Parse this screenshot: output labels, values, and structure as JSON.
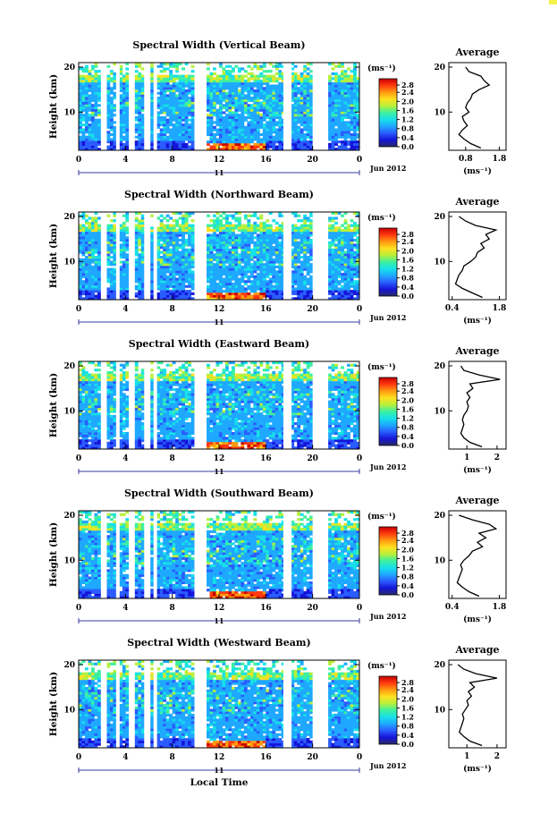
{
  "colors": {
    "corner_mark": "#f5f24a",
    "gap": "#ffffff",
    "colormap": [
      "#2a2a66",
      "#1515d8",
      "#2a5cff",
      "#1fa8ff",
      "#17e0e8",
      "#3df0a0",
      "#b8f03a",
      "#ffe020",
      "#ff9a10",
      "#ff3a10",
      "#c80000"
    ]
  },
  "shared": {
    "ylabel": "Height (km)",
    "colorbar_unit": "(ms⁻¹)",
    "colorbar_ticks": [
      "2.8",
      "2.4",
      "2.0",
      "1.6",
      "1.2",
      "0.8",
      "0.4",
      "0.0"
    ],
    "x_ticks": [
      "0",
      "4",
      "8",
      "12",
      "16",
      "20",
      "0"
    ],
    "y_ticks": [
      "20",
      "10"
    ],
    "day_label": "11",
    "date_label": "Jun 2012",
    "profile_title": "Average",
    "profile_ylabel_ticks": [
      "20",
      "10"
    ],
    "profile_unit": "(ms⁻¹)",
    "xlabel": "Local Time"
  },
  "chart_data": [
    {
      "type": "heatmap",
      "title": "Spectral Width (Vertical Beam)",
      "colorbar_range": [
        0.0,
        3.0
      ],
      "ylim": [
        1.5,
        21
      ],
      "xlim": [
        0,
        24
      ],
      "data_gaps_hours": [
        [
          2.0,
          2.4
        ],
        [
          3.2,
          3.5
        ],
        [
          4.3,
          4.7
        ],
        [
          5.6,
          6.0
        ],
        [
          6.4,
          6.7
        ],
        [
          10.0,
          10.8
        ],
        [
          17.5,
          18.2
        ],
        [
          20.0,
          21.2
        ]
      ],
      "profile": {
        "xticks": [
          "0.8",
          "1.8"
        ],
        "xlim": [
          0.3,
          2.0
        ],
        "heights_km": [
          2,
          3,
          4,
          5,
          6,
          7,
          8,
          9,
          10,
          11,
          12,
          13,
          14,
          15,
          16,
          17,
          18,
          19,
          20
        ],
        "mean_width_ms": [
          1.25,
          0.95,
          0.75,
          0.6,
          0.7,
          0.85,
          0.75,
          0.7,
          0.9,
          0.8,
          0.85,
          0.95,
          1.0,
          1.2,
          1.5,
          1.35,
          1.25,
          0.9,
          0.8
        ]
      }
    },
    {
      "type": "heatmap",
      "title": "Spectral Width (Northward Beam)",
      "colorbar_range": [
        0.0,
        3.0
      ],
      "ylim": [
        1.5,
        21
      ],
      "xlim": [
        0,
        24
      ],
      "data_gaps_hours": [
        [
          2.0,
          2.4
        ],
        [
          3.2,
          3.5
        ],
        [
          4.3,
          4.7
        ],
        [
          5.6,
          6.0
        ],
        [
          6.4,
          6.7
        ],
        [
          10.0,
          10.8
        ],
        [
          17.5,
          18.2
        ],
        [
          20.0,
          21.2
        ]
      ],
      "profile": {
        "xticks": [
          "0.4",
          "1.8"
        ],
        "xlim": [
          0.3,
          2.0
        ],
        "heights_km": [
          2,
          3,
          4,
          5,
          6,
          7,
          8,
          9,
          10,
          11,
          12,
          13,
          14,
          15,
          16,
          17,
          18,
          19,
          20
        ],
        "mean_width_ms": [
          1.3,
          1.0,
          0.7,
          0.5,
          0.55,
          0.6,
          0.7,
          0.75,
          0.95,
          1.1,
          1.15,
          1.35,
          1.25,
          1.5,
          1.4,
          1.7,
          1.1,
          0.8,
          0.6
        ]
      }
    },
    {
      "type": "heatmap",
      "title": "Spectral Width (Eastward Beam)",
      "colorbar_range": [
        0.0,
        3.0
      ],
      "ylim": [
        1.5,
        21
      ],
      "xlim": [
        0,
        24
      ],
      "data_gaps_hours": [
        [
          2.0,
          2.4
        ],
        [
          3.2,
          3.5
        ],
        [
          4.3,
          4.7
        ],
        [
          5.6,
          6.0
        ],
        [
          6.4,
          6.7
        ],
        [
          10.0,
          10.8
        ],
        [
          17.5,
          18.2
        ],
        [
          20.0,
          21.2
        ]
      ],
      "profile": {
        "xticks": [
          "1",
          "2"
        ],
        "xlim": [
          0.4,
          2.3
        ],
        "heights_km": [
          2,
          3,
          4,
          5,
          6,
          7,
          8,
          9,
          10,
          11,
          12,
          13,
          14,
          15,
          16,
          17,
          18,
          19,
          20
        ],
        "mean_width_ms": [
          1.5,
          1.1,
          0.9,
          0.8,
          0.85,
          0.9,
          0.85,
          0.9,
          1.0,
          1.05,
          1.0,
          1.1,
          1.0,
          1.2,
          1.1,
          2.1,
          1.4,
          0.9,
          0.8
        ]
      }
    },
    {
      "type": "heatmap",
      "title": "Spectral Width (Southward Beam)",
      "colorbar_range": [
        0.0,
        3.0
      ],
      "ylim": [
        1.5,
        21
      ],
      "xlim": [
        0,
        24
      ],
      "data_gaps_hours": [
        [
          2.0,
          2.4
        ],
        [
          3.2,
          3.5
        ],
        [
          4.3,
          4.7
        ],
        [
          5.6,
          6.0
        ],
        [
          6.4,
          6.7
        ],
        [
          10.0,
          10.8
        ],
        [
          17.5,
          18.2
        ],
        [
          20.0,
          21.2
        ]
      ],
      "profile": {
        "xticks": [
          "0.4",
          "1.8"
        ],
        "xlim": [
          0.3,
          2.0
        ],
        "heights_km": [
          2,
          3,
          4,
          5,
          6,
          7,
          8,
          9,
          10,
          11,
          12,
          13,
          14,
          15,
          16,
          17,
          18,
          19,
          20
        ],
        "mean_width_ms": [
          1.2,
          0.9,
          0.7,
          0.55,
          0.6,
          0.65,
          0.7,
          0.65,
          0.75,
          0.9,
          1.0,
          1.3,
          1.15,
          1.4,
          1.2,
          1.7,
          1.5,
          1.0,
          0.6
        ]
      }
    },
    {
      "type": "heatmap",
      "title": "Spectral Width (Westward Beam)",
      "colorbar_range": [
        0.0,
        3.0
      ],
      "ylim": [
        1.5,
        21
      ],
      "xlim": [
        0,
        24
      ],
      "data_gaps_hours": [
        [
          2.0,
          2.4
        ],
        [
          3.2,
          3.5
        ],
        [
          4.3,
          4.7
        ],
        [
          5.6,
          6.0
        ],
        [
          6.4,
          6.7
        ],
        [
          10.0,
          10.8
        ],
        [
          17.5,
          18.2
        ],
        [
          20.0,
          21.2
        ]
      ],
      "profile": {
        "xticks": [
          "1",
          "2"
        ],
        "xlim": [
          0.4,
          2.3
        ],
        "heights_km": [
          2,
          3,
          4,
          5,
          6,
          7,
          8,
          9,
          10,
          11,
          12,
          13,
          14,
          15,
          16,
          17,
          18,
          19,
          20
        ],
        "mean_width_ms": [
          1.5,
          1.1,
          0.9,
          0.75,
          0.8,
          0.85,
          0.9,
          0.85,
          0.95,
          1.05,
          1.0,
          1.15,
          1.05,
          1.25,
          1.1,
          2.0,
          1.3,
          0.9,
          0.7
        ]
      }
    }
  ]
}
